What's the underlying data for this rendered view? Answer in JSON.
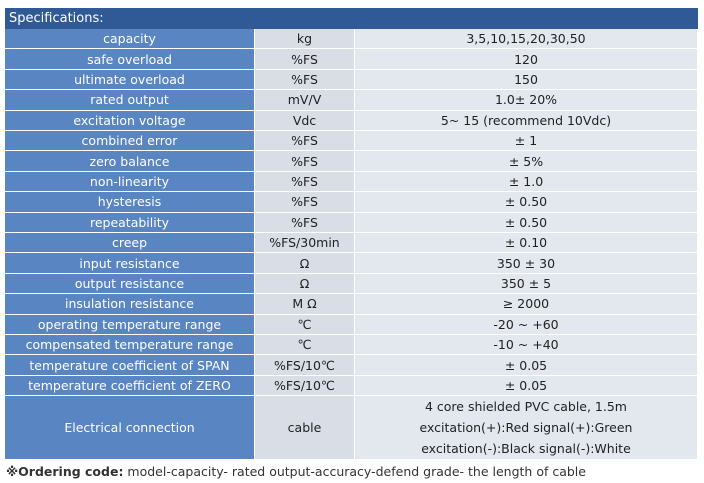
{
  "header": {
    "title": "Specifications:"
  },
  "table": {
    "rows": [
      [
        "capacity",
        "kg",
        "3,5,10,15,20,30,50"
      ],
      [
        "safe overload",
        "%FS",
        "120"
      ],
      [
        "ultimate overload",
        "%FS",
        "150"
      ],
      [
        "rated output",
        "mV/V",
        "1.0± 20%"
      ],
      [
        "excitation voltage",
        "Vdc",
        "5~ 15 (recommend 10Vdc)"
      ],
      [
        "combined error",
        "%FS",
        "± 1"
      ],
      [
        "zero balance",
        "%FS",
        "± 5%"
      ],
      [
        "non-linearity",
        "%FS",
        "± 1.0"
      ],
      [
        "hysteresis",
        "%FS",
        "± 0.50"
      ],
      [
        "repeatability",
        "%FS",
        "± 0.50"
      ],
      [
        "creep",
        "%FS/30min",
        "± 0.10"
      ],
      [
        "input resistance",
        "Ω",
        "350 ± 30"
      ],
      [
        "output resistance",
        "Ω",
        "350 ± 5"
      ],
      [
        "insulation resistance",
        "M Ω",
        "≥ 2000"
      ],
      [
        "operating temperature range",
        "℃",
        "-20 ~ +60"
      ],
      [
        "compensated temperature range",
        "℃",
        "-10 ~ +40"
      ],
      [
        "temperature coefficient of SPAN",
        "%FS/10℃",
        "± 0.05"
      ],
      [
        "temperature coefficient of ZERO",
        "%FS/10℃",
        "± 0.05"
      ],
      [
        "Electrical connection",
        "cable",
        [
          "4 core shielded PVC cable, 1.5m",
          "excitation(+):Red  signal(+):Green",
          "excitation(-):Black  signal(-):White"
        ]
      ]
    ]
  },
  "footer": {
    "label": "※Ordering code:",
    "text": " model-capacity- rated output-accuracy-defend grade- the length of cable"
  }
}
